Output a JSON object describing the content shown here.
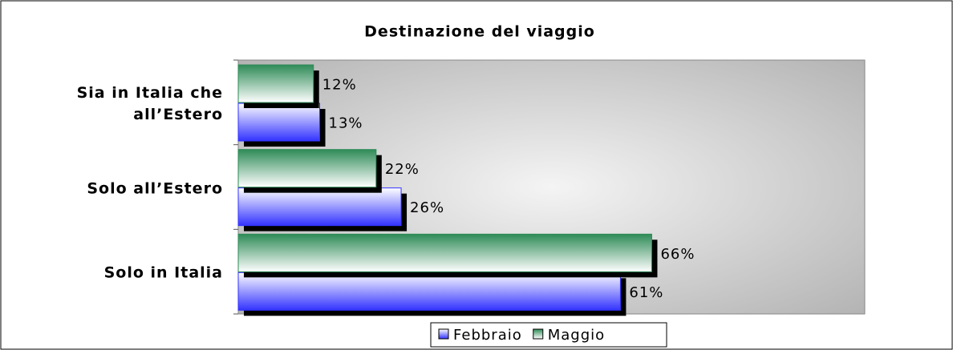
{
  "chart_data": {
    "type": "bar",
    "orientation": "horizontal",
    "title": "Destinazione del viaggio",
    "categories": [
      "Sia in Italia che all’Estero",
      "Solo all’Estero",
      "Solo in Italia"
    ],
    "series": [
      {
        "name": "Febbraio",
        "color": "#3333ff",
        "values": [
          13,
          26,
          61
        ],
        "value_labels": [
          "13%",
          "26%",
          "61%"
        ]
      },
      {
        "name": "Maggio",
        "color": "#2e8b57",
        "values": [
          12,
          22,
          66
        ],
        "value_labels": [
          "12%",
          "22%",
          "66%"
        ]
      }
    ],
    "xlim": [
      0,
      100
    ],
    "legend": "bottom"
  }
}
